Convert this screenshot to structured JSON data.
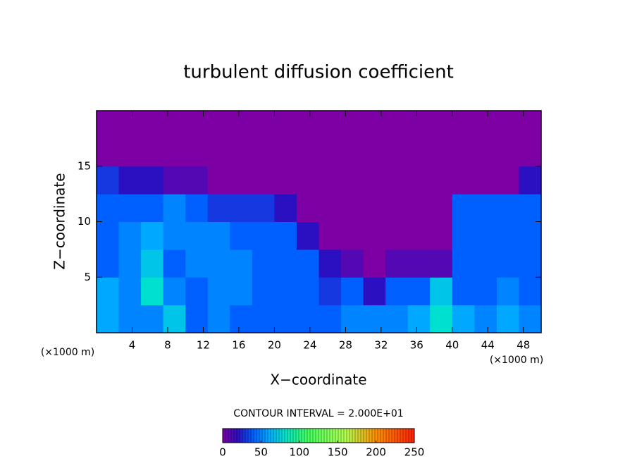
{
  "chart_data": {
    "type": "heatmap",
    "title": "turbulent diffusion coefficient",
    "x_label": "X−coordinate",
    "y_label": "Z−coordinate",
    "x_unit": "(×1000 m)",
    "y_unit": "(×1000 m)",
    "contour_note": "CONTOUR INTERVAL = 2.000E+01",
    "xlim": [
      0,
      50
    ],
    "ylim": [
      0,
      20
    ],
    "xticks": [
      4,
      8,
      12,
      16,
      20,
      24,
      28,
      32,
      36,
      40,
      44,
      48
    ],
    "yticks": [
      5,
      10,
      15
    ],
    "z": [
      [
        60,
        50,
        50,
        70,
        40,
        50,
        40,
        40,
        40,
        40,
        40,
        50,
        50,
        50,
        60,
        80,
        60,
        50,
        60,
        50
      ],
      [
        60,
        50,
        80,
        50,
        40,
        50,
        50,
        40,
        40,
        40,
        30,
        40,
        20,
        40,
        40,
        70,
        40,
        40,
        50,
        40
      ],
      [
        40,
        50,
        70,
        40,
        50,
        50,
        50,
        40,
        40,
        40,
        20,
        10,
        0,
        10,
        10,
        10,
        40,
        40,
        40,
        40
      ],
      [
        40,
        50,
        60,
        50,
        50,
        50,
        40,
        40,
        40,
        20,
        0,
        0,
        0,
        0,
        0,
        0,
        40,
        40,
        40,
        40
      ],
      [
        40,
        40,
        40,
        50,
        40,
        30,
        30,
        30,
        20,
        0,
        0,
        0,
        0,
        0,
        0,
        0,
        40,
        40,
        40,
        40
      ],
      [
        30,
        20,
        20,
        10,
        10,
        0,
        0,
        0,
        0,
        0,
        0,
        0,
        0,
        0,
        0,
        0,
        0,
        0,
        0,
        20
      ],
      [
        0,
        0,
        0,
        0,
        0,
        0,
        0,
        0,
        0,
        0,
        0,
        0,
        0,
        0,
        0,
        0,
        0,
        0,
        0,
        0
      ],
      [
        0,
        0,
        0,
        0,
        0,
        0,
        0,
        0,
        0,
        0,
        0,
        0,
        0,
        0,
        0,
        0,
        0,
        0,
        0,
        0
      ]
    ],
    "colorbar_lim": [
      0,
      250
    ],
    "colorbar_ticks": [
      0,
      50,
      100,
      150,
      200,
      250
    ],
    "colormap": [
      {
        "value": 0,
        "color": "#7d00a5"
      },
      {
        "value": 20,
        "color": "#2a10c0"
      },
      {
        "value": 40,
        "color": "#0060ff"
      },
      {
        "value": 60,
        "color": "#00a8ff"
      },
      {
        "value": 80,
        "color": "#00e0d0"
      },
      {
        "value": 110,
        "color": "#40ff60"
      },
      {
        "value": 160,
        "color": "#b0ff50"
      },
      {
        "value": 200,
        "color": "#ff9000"
      },
      {
        "value": 250,
        "color": "#ff2000"
      }
    ]
  }
}
